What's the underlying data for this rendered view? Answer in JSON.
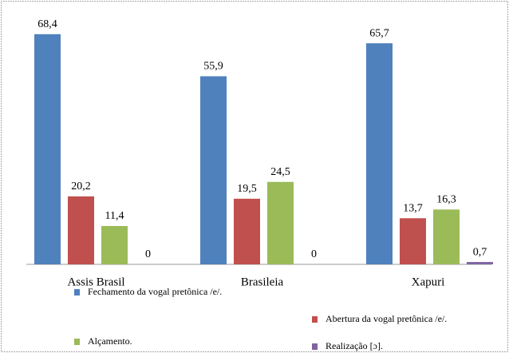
{
  "chart_data": {
    "type": "bar",
    "categories": [
      "Assis Brasil",
      "Brasileia",
      "Xapuri"
    ],
    "series": [
      {
        "name": "Fechamento  da vogal pretônica /e/.",
        "color": "#4f81bd",
        "values": [
          68.4,
          55.9,
          65.7
        ],
        "value_labels": [
          "68,4",
          "55,9",
          "65,7"
        ]
      },
      {
        "name": "Abertura da vogal pretônica /e/.",
        "color": "#c0504d",
        "values": [
          20.2,
          19.5,
          13.7
        ],
        "value_labels": [
          "20,2",
          "19,5",
          "13,7"
        ]
      },
      {
        "name": "Alçamento.",
        "color": "#9bbb59",
        "values": [
          11.4,
          24.5,
          16.3
        ],
        "value_labels": [
          "11,4",
          "24,5",
          "16,3"
        ]
      },
      {
        "name": "Realização [ɔ].",
        "color": "#8064a2",
        "values": [
          0,
          0,
          0.7
        ],
        "value_labels": [
          "0",
          "0",
          "0,7"
        ]
      }
    ],
    "ylim": [
      0,
      75
    ]
  }
}
